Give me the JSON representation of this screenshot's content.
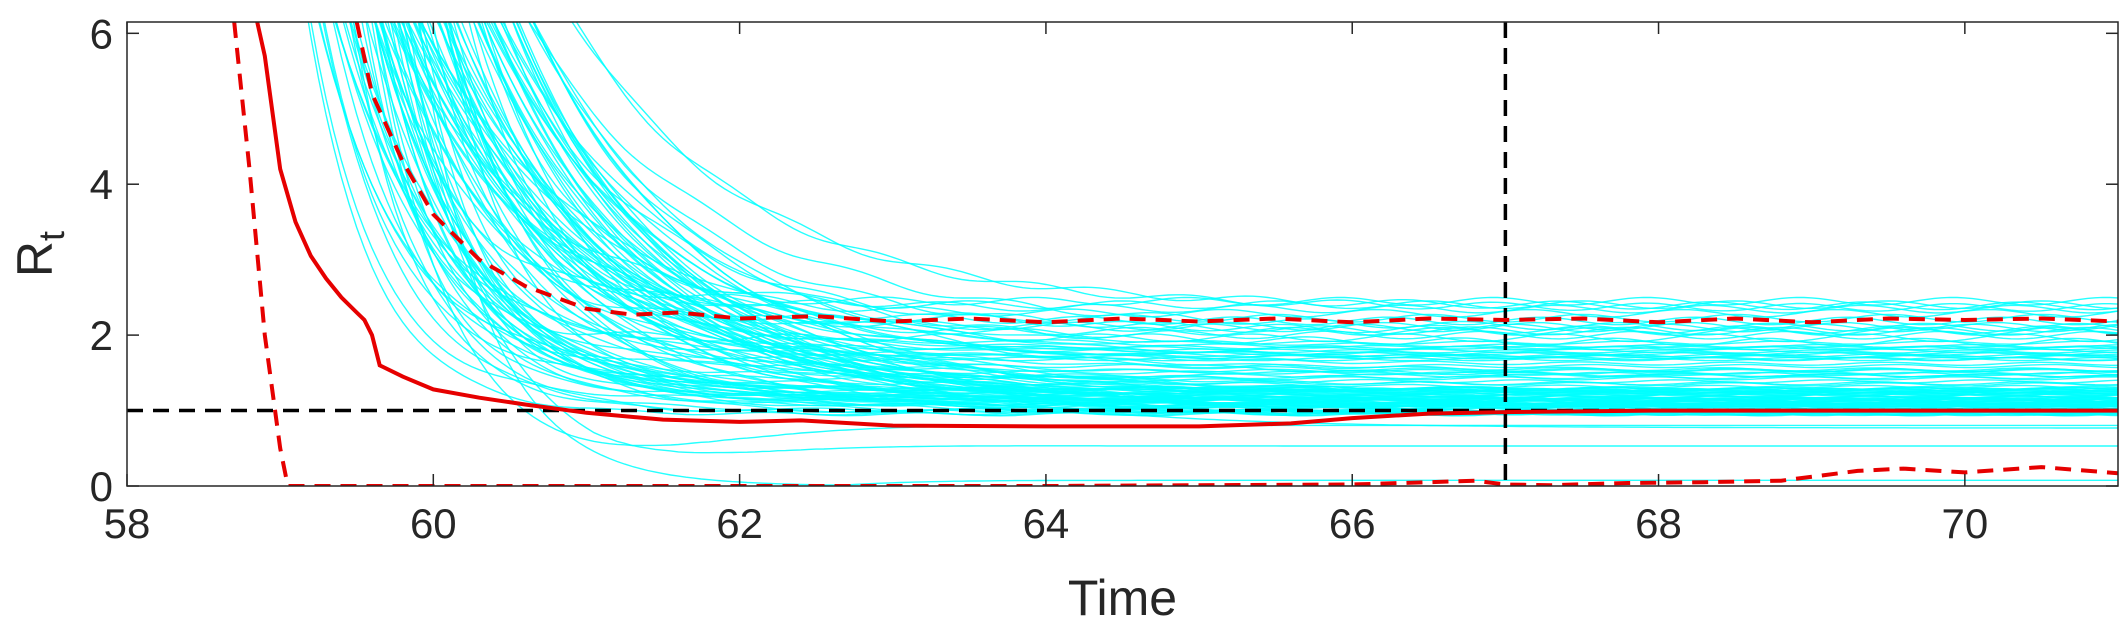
{
  "chart_data": {
    "type": "line",
    "xlabel": "Time",
    "ylabel": "R",
    "ylabel_sub": "t",
    "xlim": [
      58,
      71
    ],
    "ylim": [
      0,
      6.15
    ],
    "xticks": [
      58,
      60,
      62,
      64,
      66,
      68,
      70
    ],
    "xtick_labels": [
      "58",
      "60",
      "62",
      "64",
      "66",
      "68",
      "70"
    ],
    "yticks": [
      0,
      2,
      4,
      6
    ],
    "ytick_labels": [
      "0",
      "2",
      "4",
      "6"
    ],
    "grid": false,
    "colors": {
      "ensemble": "#00ffff",
      "median": "#e60000",
      "bounds": "#e60000",
      "reference": "#000000"
    },
    "reference_lines": [
      {
        "orientation": "horizontal",
        "y": 1,
        "style": "dashed"
      },
      {
        "orientation": "vertical",
        "x": 67,
        "style": "dashed"
      }
    ],
    "ensemble_count": 120,
    "series": [
      {
        "role": "median",
        "style": "solid",
        "x": [
          58.85,
          58.9,
          59.0,
          59.1,
          59.2,
          59.3,
          59.4,
          59.5,
          59.55,
          59.6,
          59.65,
          59.8,
          60.0,
          60.3,
          60.6,
          61.0,
          61.5,
          62.0,
          62.4,
          63.0,
          64.0,
          65.0,
          65.6,
          66.0,
          66.5,
          67.0,
          68.0,
          69.0,
          70.0,
          71.0
        ],
        "y": [
          6.15,
          5.7,
          4.2,
          3.5,
          3.05,
          2.75,
          2.5,
          2.3,
          2.2,
          2.0,
          1.6,
          1.45,
          1.28,
          1.17,
          1.08,
          0.97,
          0.88,
          0.85,
          0.87,
          0.8,
          0.79,
          0.79,
          0.83,
          0.9,
          0.96,
          0.98,
          1.0,
          1.0,
          1.0,
          1.0
        ]
      },
      {
        "role": "upper-bound",
        "style": "dashed",
        "x": [
          59.5,
          59.6,
          59.8,
          60.0,
          60.3,
          60.6,
          61.0,
          61.3,
          61.6,
          62.0,
          62.5,
          63.0,
          63.5,
          64.0,
          64.5,
          65.0,
          65.5,
          66.0,
          66.5,
          67.0,
          67.5,
          68.0,
          68.5,
          69.0,
          69.5,
          70.0,
          70.5,
          71.0
        ],
        "y": [
          6.15,
          5.2,
          4.3,
          3.6,
          3.0,
          2.65,
          2.35,
          2.27,
          2.3,
          2.22,
          2.25,
          2.18,
          2.22,
          2.17,
          2.22,
          2.18,
          2.22,
          2.17,
          2.22,
          2.2,
          2.22,
          2.17,
          2.22,
          2.17,
          2.22,
          2.2,
          2.22,
          2.18
        ]
      },
      {
        "role": "lower-bound",
        "style": "dashed",
        "x": [
          58.7,
          58.8,
          58.9,
          59.0,
          59.05,
          59.2,
          60.0,
          62.0,
          64.0,
          66.0,
          66.5,
          66.8,
          67.0,
          67.3,
          67.8,
          68.3,
          68.8,
          69.3,
          69.6,
          70.0,
          70.5,
          71.0
        ],
        "y": [
          6.15,
          4.2,
          2.0,
          0.5,
          0.0,
          0.0,
          0.0,
          0.0,
          0.0,
          0.02,
          0.05,
          0.07,
          0.02,
          0.01,
          0.04,
          0.05,
          0.07,
          0.2,
          0.23,
          0.18,
          0.25,
          0.17
        ]
      }
    ]
  }
}
